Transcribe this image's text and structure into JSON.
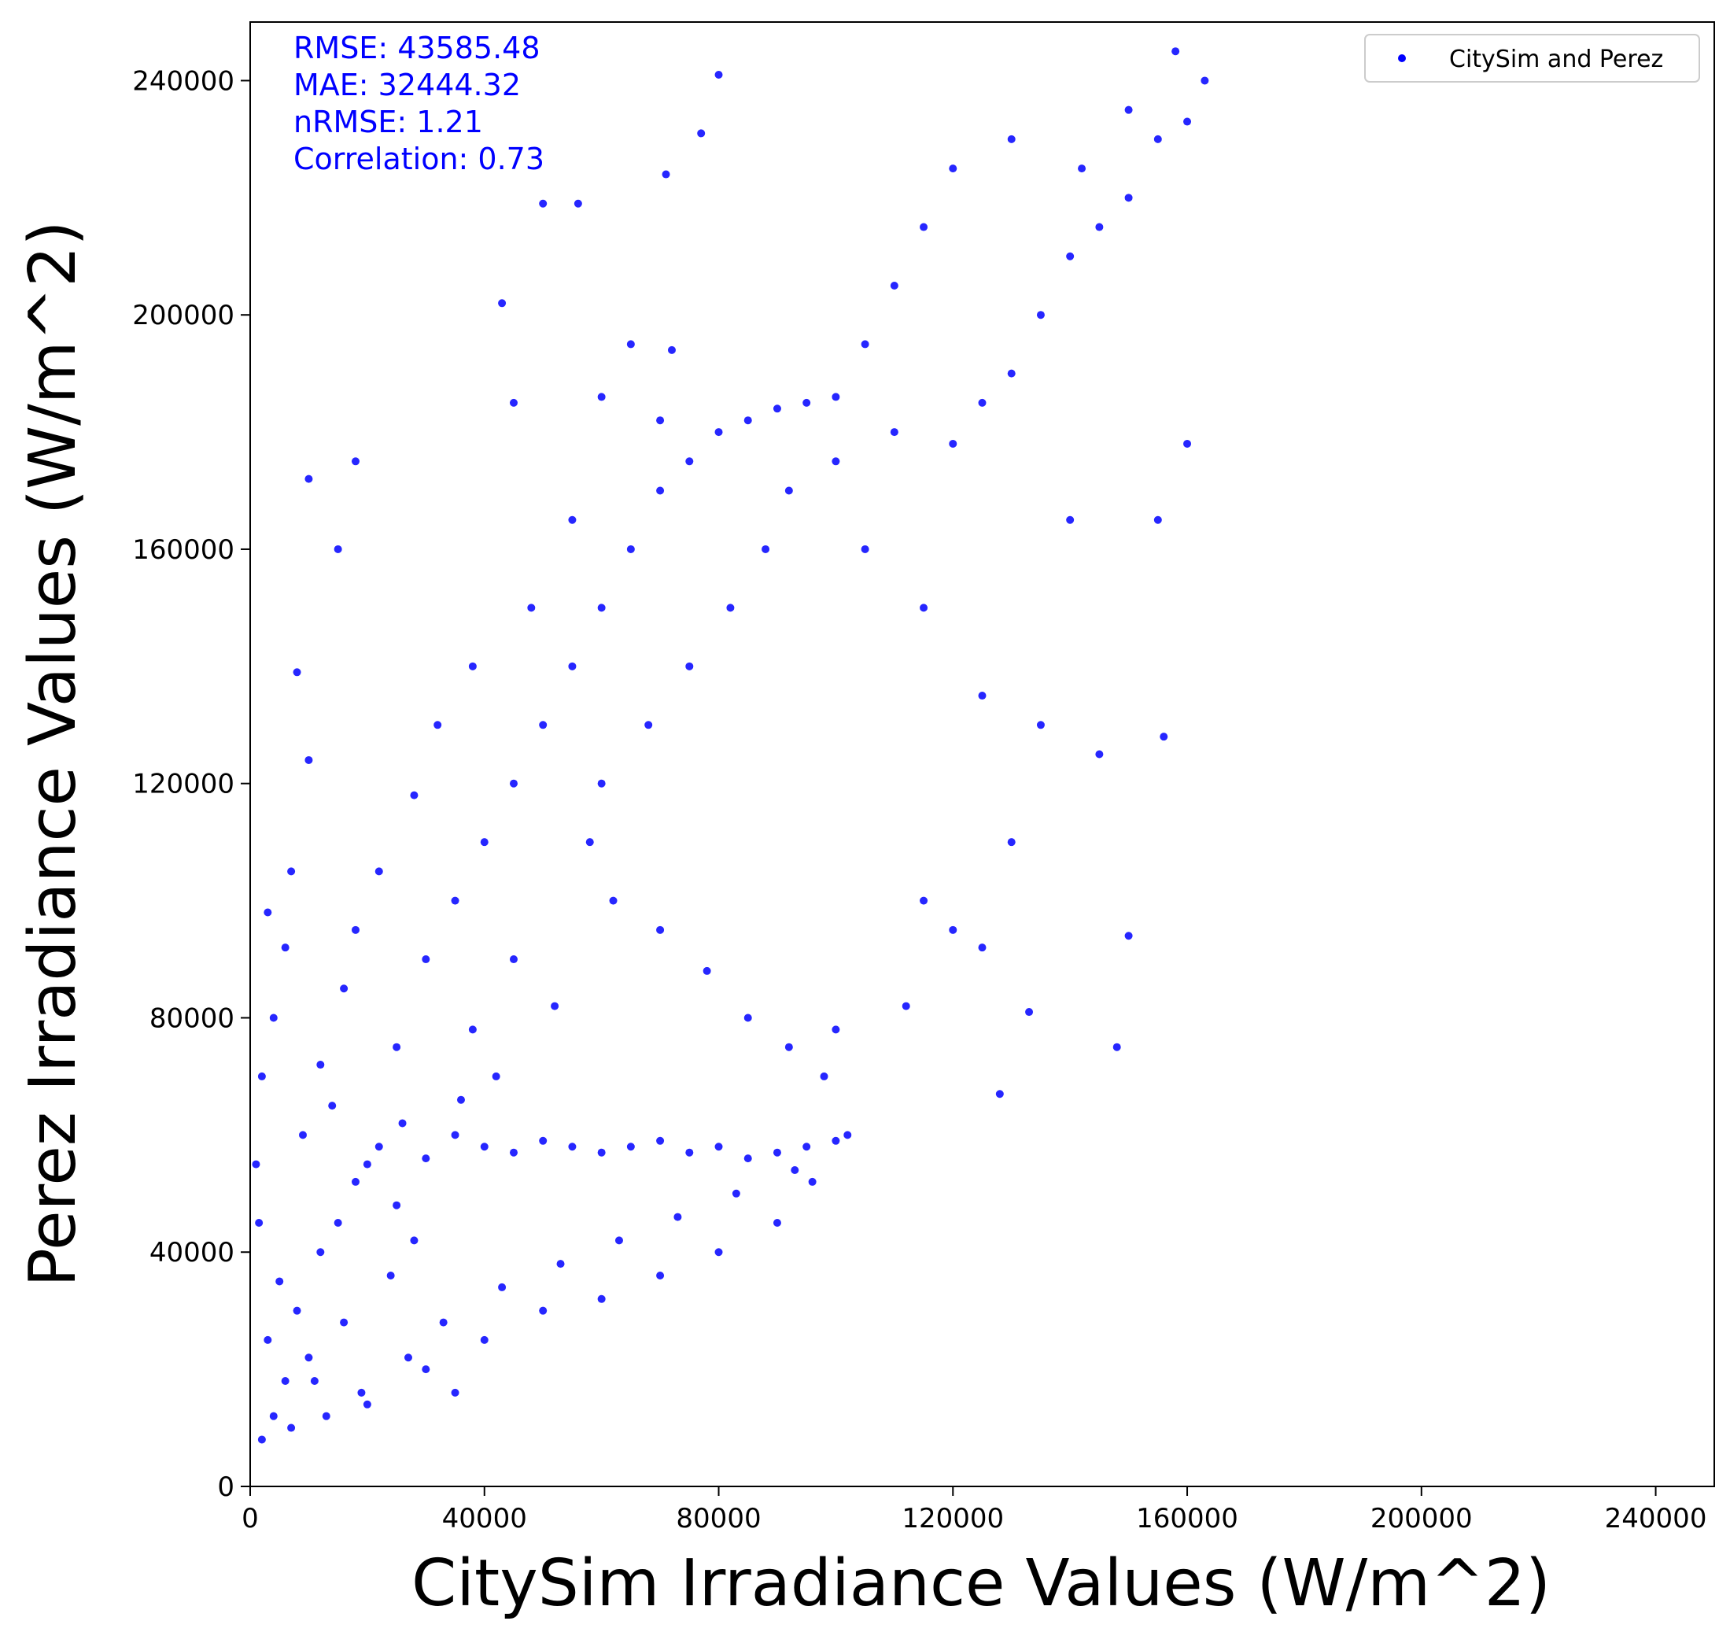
{
  "chart_data": {
    "type": "scatter",
    "xlabel": "CitySim Irradiance Values (W/m^2)",
    "ylabel": "Perez Irradiance Values (W/m^2)",
    "xlim": [
      0,
      250000
    ],
    "ylim": [
      0,
      250000
    ],
    "x_ticks": [
      0,
      40000,
      80000,
      120000,
      160000,
      200000,
      240000
    ],
    "y_ticks": [
      0,
      40000,
      80000,
      120000,
      160000,
      200000,
      240000
    ],
    "x_tick_labels": [
      "0",
      "40000",
      "80000",
      "120000",
      "160000",
      "200000",
      "240000"
    ],
    "y_tick_labels": [
      "0",
      "40000",
      "80000",
      "120000",
      "160000",
      "200000",
      "240000"
    ],
    "grid": false,
    "legend": {
      "placement": "top-right",
      "entries": [
        "CitySim and Perez"
      ]
    },
    "stats": [
      "RMSE: 43585.48",
      "MAE: 32444.32",
      "nRMSE: 1.21",
      "Correlation: 0.73"
    ],
    "marker_color": "#0000ff",
    "series": [
      {
        "name": "CitySim and Perez",
        "points": [
          [
            2000,
            8000
          ],
          [
            4000,
            12000
          ],
          [
            6000,
            18000
          ],
          [
            3000,
            25000
          ],
          [
            8000,
            30000
          ],
          [
            10000,
            22000
          ],
          [
            5000,
            35000
          ],
          [
            12000,
            40000
          ],
          [
            15000,
            45000
          ],
          [
            18000,
            52000
          ],
          [
            20000,
            55000
          ],
          [
            9000,
            60000
          ],
          [
            14000,
            65000
          ],
          [
            22000,
            58000
          ],
          [
            25000,
            48000
          ],
          [
            28000,
            42000
          ],
          [
            30000,
            56000
          ],
          [
            35000,
            60000
          ],
          [
            40000,
            58000
          ],
          [
            45000,
            57000
          ],
          [
            50000,
            59000
          ],
          [
            55000,
            58000
          ],
          [
            60000,
            57000
          ],
          [
            65000,
            58000
          ],
          [
            70000,
            59000
          ],
          [
            75000,
            57000
          ],
          [
            80000,
            58000
          ],
          [
            85000,
            56000
          ],
          [
            90000,
            57000
          ],
          [
            95000,
            58000
          ],
          [
            100000,
            59000
          ],
          [
            102000,
            60000
          ],
          [
            30000,
            20000
          ],
          [
            40000,
            25000
          ],
          [
            50000,
            30000
          ],
          [
            60000,
            32000
          ],
          [
            70000,
            36000
          ],
          [
            80000,
            40000
          ],
          [
            90000,
            45000
          ],
          [
            96000,
            52000
          ],
          [
            20000,
            14000
          ],
          [
            35000,
            16000
          ],
          [
            25000,
            75000
          ],
          [
            30000,
            90000
          ],
          [
            35000,
            100000
          ],
          [
            40000,
            110000
          ],
          [
            45000,
            120000
          ],
          [
            50000,
            130000
          ],
          [
            55000,
            140000
          ],
          [
            60000,
            150000
          ],
          [
            65000,
            160000
          ],
          [
            70000,
            170000
          ],
          [
            75000,
            175000
          ],
          [
            80000,
            180000
          ],
          [
            85000,
            182000
          ],
          [
            90000,
            184000
          ],
          [
            95000,
            185000
          ],
          [
            100000,
            186000
          ],
          [
            110000,
            180000
          ],
          [
            120000,
            178000
          ],
          [
            125000,
            185000
          ],
          [
            130000,
            190000
          ],
          [
            135000,
            200000
          ],
          [
            140000,
            210000
          ],
          [
            145000,
            215000
          ],
          [
            150000,
            220000
          ],
          [
            155000,
            230000
          ],
          [
            160000,
            233000
          ],
          [
            163000,
            240000
          ],
          [
            158000,
            245000
          ],
          [
            150000,
            235000
          ],
          [
            142000,
            225000
          ],
          [
            130000,
            230000
          ],
          [
            120000,
            225000
          ],
          [
            115000,
            215000
          ],
          [
            110000,
            205000
          ],
          [
            105000,
            195000
          ],
          [
            100000,
            175000
          ],
          [
            105000,
            160000
          ],
          [
            115000,
            150000
          ],
          [
            125000,
            135000
          ],
          [
            135000,
            130000
          ],
          [
            145000,
            125000
          ],
          [
            140000,
            165000
          ],
          [
            130000,
            110000
          ],
          [
            120000,
            95000
          ],
          [
            112000,
            82000
          ],
          [
            115000,
            100000
          ],
          [
            125000,
            92000
          ],
          [
            148000,
            75000
          ],
          [
            150000,
            94000
          ],
          [
            128000,
            67000
          ],
          [
            133000,
            81000
          ],
          [
            155000,
            165000
          ],
          [
            156000,
            128000
          ],
          [
            160000,
            178000
          ],
          [
            80000,
            241000
          ],
          [
            43000,
            202000
          ],
          [
            50000,
            219000
          ],
          [
            56000,
            219000
          ],
          [
            71000,
            224000
          ],
          [
            77000,
            231000
          ],
          [
            10000,
            172000
          ],
          [
            18000,
            175000
          ],
          [
            15000,
            160000
          ],
          [
            8000,
            139000
          ],
          [
            10000,
            124000
          ],
          [
            7000,
            105000
          ],
          [
            3000,
            98000
          ],
          [
            6000,
            92000
          ],
          [
            4000,
            80000
          ],
          [
            2000,
            70000
          ],
          [
            1000,
            55000
          ],
          [
            1500,
            45000
          ],
          [
            45000,
            185000
          ],
          [
            60000,
            186000
          ],
          [
            70000,
            182000
          ],
          [
            65000,
            195000
          ],
          [
            72000,
            194000
          ],
          [
            55000,
            165000
          ],
          [
            48000,
            150000
          ],
          [
            38000,
            140000
          ],
          [
            32000,
            130000
          ],
          [
            28000,
            118000
          ],
          [
            22000,
            105000
          ],
          [
            18000,
            95000
          ],
          [
            16000,
            85000
          ],
          [
            12000,
            72000
          ],
          [
            60000,
            120000
          ],
          [
            68000,
            130000
          ],
          [
            75000,
            140000
          ],
          [
            82000,
            150000
          ],
          [
            88000,
            160000
          ],
          [
            92000,
            170000
          ],
          [
            58000,
            110000
          ],
          [
            62000,
            100000
          ],
          [
            70000,
            95000
          ],
          [
            78000,
            88000
          ],
          [
            85000,
            80000
          ],
          [
            92000,
            75000
          ],
          [
            98000,
            70000
          ],
          [
            100000,
            78000
          ],
          [
            45000,
            90000
          ],
          [
            52000,
            82000
          ],
          [
            38000,
            78000
          ],
          [
            42000,
            70000
          ],
          [
            36000,
            66000
          ],
          [
            26000,
            62000
          ],
          [
            24000,
            36000
          ],
          [
            16000,
            28000
          ],
          [
            11000,
            18000
          ],
          [
            7000,
            10000
          ],
          [
            13000,
            12000
          ],
          [
            19000,
            16000
          ],
          [
            27000,
            22000
          ],
          [
            33000,
            28000
          ],
          [
            43000,
            34000
          ],
          [
            53000,
            38000
          ],
          [
            63000,
            42000
          ],
          [
            73000,
            46000
          ],
          [
            83000,
            50000
          ],
          [
            93000,
            54000
          ]
        ]
      }
    ]
  }
}
